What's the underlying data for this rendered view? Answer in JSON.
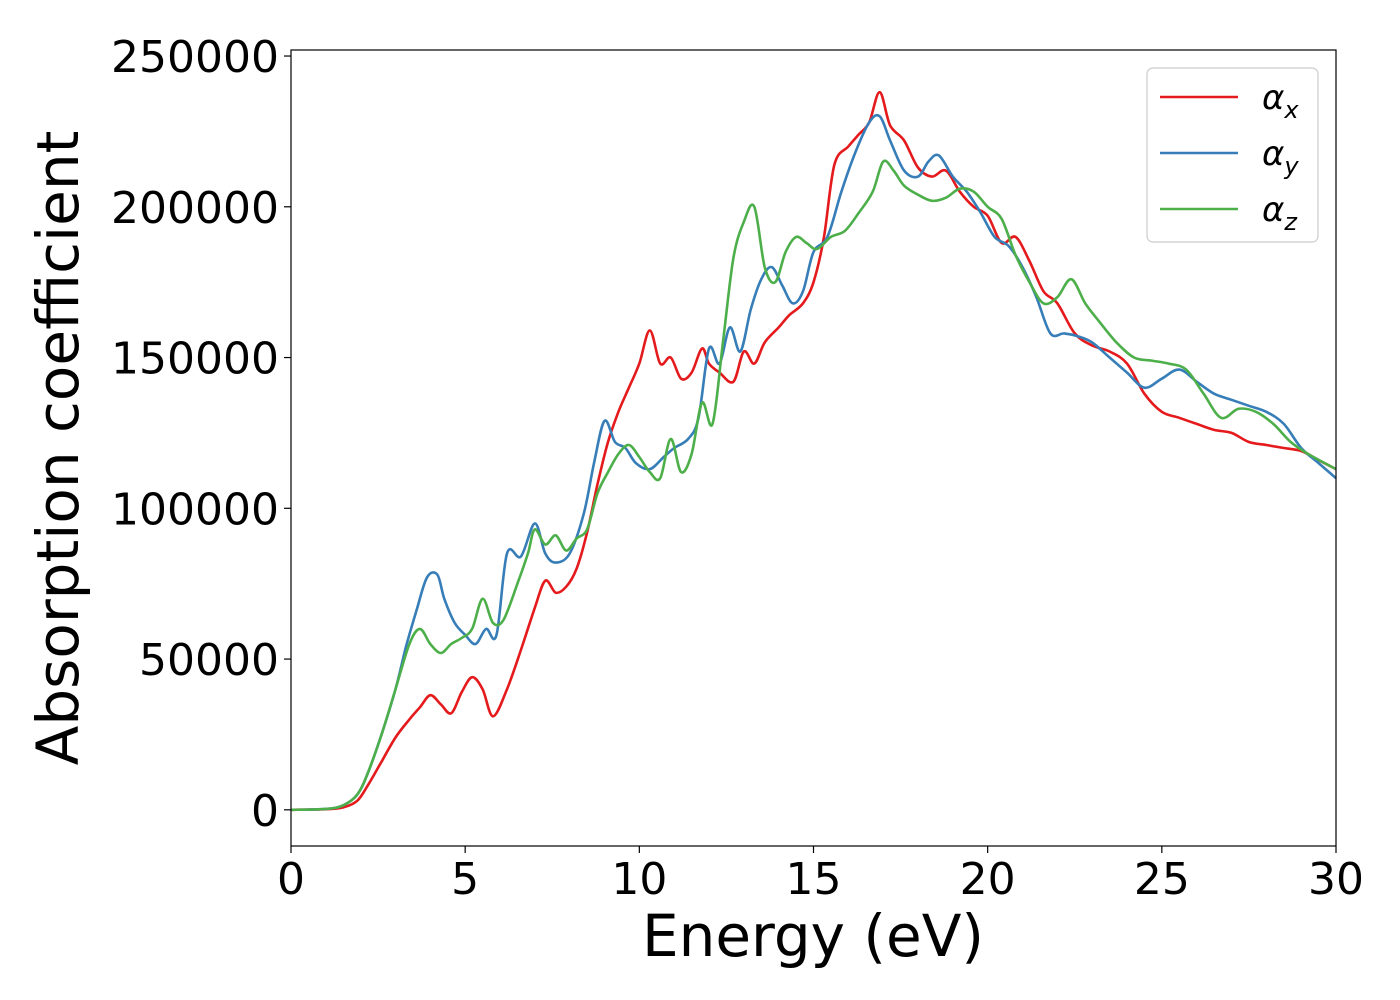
{
  "chart_data": {
    "type": "line",
    "xlabel": "Energy (eV)",
    "ylabel": "Absorption coefficient",
    "xlim": [
      0,
      30
    ],
    "ylim": [
      -12000,
      252000
    ],
    "xticks": [
      0,
      5,
      10,
      15,
      20,
      25,
      30
    ],
    "xtick_labels": [
      "0",
      "5",
      "10",
      "15",
      "20",
      "25",
      "30"
    ],
    "yticks": [
      0,
      50000,
      100000,
      150000,
      200000,
      250000
    ],
    "ytick_labels": [
      "0",
      "50000",
      "100000",
      "150000",
      "200000",
      "250000"
    ],
    "grid": false,
    "legend_position": "top-right",
    "series": [
      {
        "name": "α",
        "subscript": "x",
        "color": "#e41a1c",
        "x": [
          0,
          1,
          1.5,
          1.9,
          2.2,
          2.6,
          3.0,
          3.4,
          3.7,
          4.0,
          4.3,
          4.6,
          4.9,
          5.2,
          5.5,
          5.8,
          6.2,
          6.6,
          7.0,
          7.3,
          7.6,
          7.9,
          8.2,
          8.5,
          8.8,
          9.1,
          9.4,
          9.7,
          10.0,
          10.3,
          10.6,
          10.9,
          11.2,
          11.5,
          11.8,
          12.0,
          12.3,
          12.7,
          13.0,
          13.3,
          13.6,
          14.0,
          14.3,
          14.7,
          15.0,
          15.3,
          15.6,
          16.0,
          16.3,
          16.6,
          16.9,
          17.2,
          17.6,
          18.0,
          18.4,
          18.8,
          19.2,
          19.6,
          20.0,
          20.4,
          20.8,
          21.2,
          21.6,
          22.0,
          22.5,
          23.0,
          23.5,
          24.0,
          24.5,
          25.0,
          25.5,
          26.0,
          26.5,
          27.0,
          27.5,
          28.0,
          28.5,
          29.0,
          29.5,
          30.0
        ],
        "y": [
          0,
          200,
          800,
          3000,
          8000,
          16000,
          24000,
          30000,
          34000,
          38000,
          35000,
          32000,
          39000,
          44000,
          40000,
          31000,
          40000,
          53000,
          67000,
          76000,
          72000,
          74000,
          80000,
          92000,
          108000,
          122000,
          132000,
          140000,
          148000,
          159000,
          148000,
          150000,
          143000,
          145000,
          153000,
          148000,
          145000,
          142000,
          152000,
          148000,
          155000,
          160000,
          164000,
          168000,
          175000,
          190000,
          214000,
          220000,
          224000,
          228000,
          238000,
          227000,
          222000,
          213000,
          210000,
          212000,
          205000,
          200000,
          197000,
          188000,
          190000,
          182000,
          172000,
          168000,
          158000,
          154000,
          152000,
          148000,
          138000,
          132000,
          130000,
          128000,
          126000,
          125000,
          122000,
          121000,
          120000,
          119000,
          116000,
          113000
        ]
      },
      {
        "name": "α",
        "subscript": "y",
        "color": "#377eb8",
        "x": [
          0,
          1,
          1.5,
          1.9,
          2.2,
          2.6,
          3.0,
          3.3,
          3.6,
          3.9,
          4.2,
          4.4,
          4.7,
          5.0,
          5.3,
          5.6,
          5.9,
          6.2,
          6.6,
          7.0,
          7.3,
          7.6,
          8.0,
          8.4,
          8.7,
          9.0,
          9.3,
          9.6,
          9.9,
          10.3,
          10.7,
          11.0,
          11.4,
          11.7,
          12.0,
          12.3,
          12.6,
          12.9,
          13.2,
          13.5,
          13.8,
          14.1,
          14.4,
          14.7,
          15.0,
          15.4,
          15.8,
          16.2,
          16.6,
          16.9,
          17.2,
          17.6,
          18.0,
          18.3,
          18.6,
          19.0,
          19.4,
          19.8,
          20.2,
          20.6,
          21.0,
          21.4,
          21.8,
          22.2,
          22.6,
          23.0,
          23.5,
          24.0,
          24.5,
          25.0,
          25.5,
          26.0,
          26.5,
          27.0,
          27.5,
          28.0,
          28.5,
          29.0,
          29.5,
          30.0
        ],
        "y": [
          0,
          300,
          1500,
          5000,
          12000,
          25000,
          40000,
          54000,
          66000,
          77000,
          78000,
          70000,
          62000,
          58000,
          55000,
          60000,
          58000,
          85000,
          84000,
          95000,
          85000,
          82000,
          85000,
          98000,
          115000,
          129000,
          122000,
          120000,
          115000,
          113000,
          117000,
          120000,
          123000,
          130000,
          153000,
          148000,
          160000,
          152000,
          166000,
          176000,
          180000,
          174000,
          168000,
          172000,
          185000,
          190000,
          205000,
          218000,
          228000,
          230000,
          222000,
          212000,
          210000,
          215000,
          217000,
          210000,
          205000,
          198000,
          190000,
          187000,
          180000,
          170000,
          158000,
          158000,
          157000,
          155000,
          150000,
          145000,
          140000,
          143000,
          146000,
          142000,
          138000,
          136000,
          134000,
          132000,
          128000,
          120000,
          115000,
          110000
        ]
      },
      {
        "name": "α",
        "subscript": "z",
        "color": "#4daf4a",
        "x": [
          0,
          1,
          1.5,
          1.9,
          2.2,
          2.6,
          3.0,
          3.4,
          3.7,
          4.0,
          4.3,
          4.6,
          4.9,
          5.2,
          5.5,
          5.8,
          6.1,
          6.5,
          6.8,
          7.0,
          7.3,
          7.6,
          7.9,
          8.2,
          8.5,
          8.8,
          9.1,
          9.4,
          9.7,
          10.0,
          10.3,
          10.6,
          10.9,
          11.2,
          11.5,
          11.8,
          12.1,
          12.4,
          12.7,
          13.0,
          13.3,
          13.6,
          13.9,
          14.2,
          14.5,
          14.8,
          15.1,
          15.5,
          15.9,
          16.3,
          16.7,
          17.0,
          17.3,
          17.6,
          18.0,
          18.4,
          18.8,
          19.2,
          19.6,
          20.0,
          20.4,
          20.8,
          21.2,
          21.6,
          22.0,
          22.4,
          22.8,
          23.2,
          23.7,
          24.2,
          24.7,
          25.2,
          25.7,
          26.2,
          26.7,
          27.2,
          27.7,
          28.2,
          28.7,
          29.2,
          30.0
        ],
        "y": [
          0,
          300,
          1500,
          5000,
          12000,
          25000,
          40000,
          55000,
          60000,
          55000,
          52000,
          55000,
          57000,
          60000,
          70000,
          62000,
          63000,
          75000,
          85000,
          93000,
          88000,
          91000,
          86000,
          90000,
          93000,
          105000,
          112000,
          118000,
          121000,
          117000,
          112000,
          110000,
          123000,
          112000,
          118000,
          135000,
          128000,
          155000,
          183000,
          195000,
          200000,
          180000,
          175000,
          185000,
          190000,
          188000,
          186000,
          190000,
          192000,
          198000,
          205000,
          215000,
          212000,
          207000,
          204000,
          202000,
          203000,
          206000,
          205000,
          200000,
          196000,
          184000,
          175000,
          168000,
          170000,
          176000,
          168000,
          162000,
          155000,
          150000,
          149000,
          148000,
          146000,
          138000,
          130000,
          133000,
          132000,
          128000,
          122000,
          118000,
          113000
        ]
      }
    ]
  }
}
